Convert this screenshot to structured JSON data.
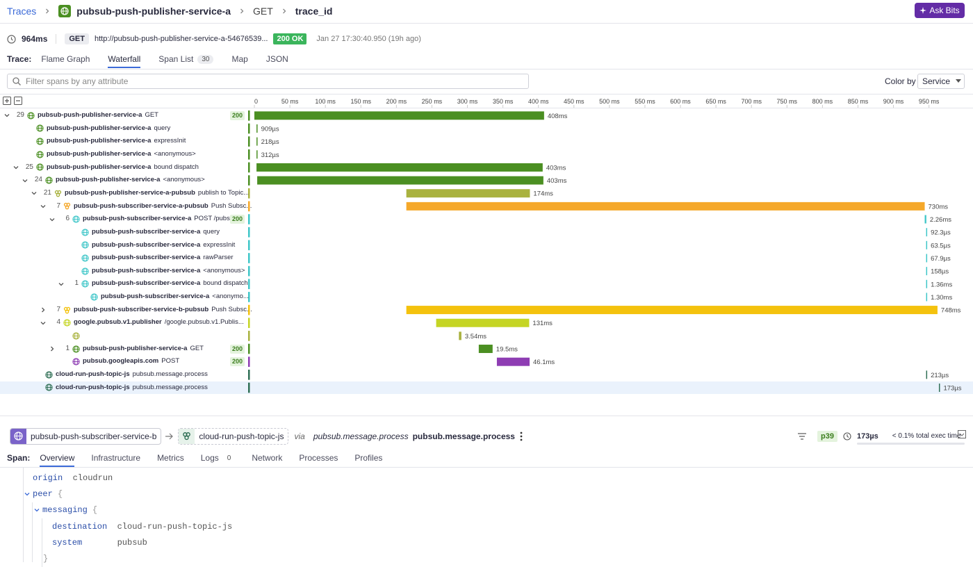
{
  "header": {
    "breadcrumb": [
      "Traces",
      "pubsub-push-publisher-service-a",
      "GET",
      "trace_id"
    ],
    "ask_button": "Ask Bits"
  },
  "summary": {
    "duration": "964ms",
    "method": "GET",
    "url": "http://pubsub-push-publisher-service-a-54676539...",
    "status": "200 OK",
    "timestamp": "Jan 27 17:30:40.950 (19h ago)"
  },
  "trace_tabs": {
    "label": "Trace:",
    "items": [
      "Flame Graph",
      "Waterfall",
      "Span List",
      "Map",
      "JSON"
    ],
    "active": 1,
    "span_list_count": 30
  },
  "filter": {
    "placeholder": "Filter spans by any attribute",
    "color_by_label": "Color by",
    "color_by_value": "Service"
  },
  "waterfall": {
    "xlim": [
      0,
      1012
    ],
    "ticks": [
      {
        "value": 0,
        "label": "0"
      },
      {
        "value": 50,
        "label": "50 ms"
      },
      {
        "value": 100,
        "label": "100 ms"
      },
      {
        "value": 150,
        "label": "150 ms"
      },
      {
        "value": 200,
        "label": "200 ms"
      },
      {
        "value": 250,
        "label": "250 ms"
      },
      {
        "value": 300,
        "label": "300 ms"
      },
      {
        "value": 350,
        "label": "350 ms"
      },
      {
        "value": 400,
        "label": "400 ms"
      },
      {
        "value": 450,
        "label": "450 ms"
      },
      {
        "value": 500,
        "label": "500 ms"
      },
      {
        "value": 550,
        "label": "550 ms"
      },
      {
        "value": 600,
        "label": "600 ms"
      },
      {
        "value": 650,
        "label": "650 ms"
      },
      {
        "value": 700,
        "label": "700 ms"
      },
      {
        "value": 750,
        "label": "750 ms"
      },
      {
        "value": 800,
        "label": "800 ms"
      },
      {
        "value": 850,
        "label": "850 ms"
      },
      {
        "value": 900,
        "label": "900 ms"
      },
      {
        "value": 950,
        "label": "950 ms"
      }
    ],
    "selected": 21,
    "spans": [
      {
        "count": 29,
        "expanded": true,
        "depth": 0,
        "service": "pubsub-push-publisher-service-a",
        "resource": "GET",
        "status": 200,
        "start_ms": 0,
        "duration_ms": 408,
        "duration_label": "408ms",
        "color": "#4b8f22",
        "icon": "globe"
      },
      {
        "count": null,
        "expanded": null,
        "depth": 1,
        "service": "pubsub-push-publisher-service-a",
        "resource": "query",
        "status": null,
        "start_ms": 3,
        "duration_ms": 0.909,
        "duration_label": "909µs",
        "color": "#4b8f22",
        "icon": "globe"
      },
      {
        "count": null,
        "expanded": null,
        "depth": 1,
        "service": "pubsub-push-publisher-service-a",
        "resource": "expressInit",
        "status": null,
        "start_ms": 3,
        "duration_ms": 0.218,
        "duration_label": "218µs",
        "color": "#4b8f22",
        "icon": "globe"
      },
      {
        "count": null,
        "expanded": null,
        "depth": 1,
        "service": "pubsub-push-publisher-service-a",
        "resource": "<anonymous>",
        "status": null,
        "start_ms": 3,
        "duration_ms": 0.312,
        "duration_label": "312µs",
        "color": "#4b8f22",
        "icon": "globe"
      },
      {
        "count": 25,
        "expanded": true,
        "depth": 1,
        "service": "pubsub-push-publisher-service-a",
        "resource": "bound dispatch",
        "status": null,
        "start_ms": 3,
        "duration_ms": 403,
        "duration_label": "403ms",
        "color": "#4b8f22",
        "icon": "globe"
      },
      {
        "count": 24,
        "expanded": true,
        "depth": 2,
        "service": "pubsub-push-publisher-service-a",
        "resource": "<anonymous>",
        "status": null,
        "start_ms": 4,
        "duration_ms": 403,
        "duration_label": "403ms",
        "color": "#4b8f22",
        "icon": "globe"
      },
      {
        "count": 21,
        "expanded": true,
        "depth": 3,
        "service": "pubsub-push-publisher-service-a-pubsub",
        "resource": "publish to Topic...",
        "status": null,
        "start_ms": 214,
        "duration_ms": 174,
        "duration_label": "174ms",
        "color": "#a9b23f",
        "icon": "queue"
      },
      {
        "count": 7,
        "expanded": true,
        "depth": 4,
        "service": "pubsub-push-subscriber-service-a-pubsub",
        "resource": "Push Subsc...",
        "status": null,
        "start_ms": 214,
        "duration_ms": 730,
        "duration_label": "730ms",
        "color": "#f5a82a",
        "icon": "queue"
      },
      {
        "count": 6,
        "expanded": true,
        "depth": 5,
        "service": "pubsub-push-subscriber-service-a",
        "resource": "POST /pubs...",
        "status": 200,
        "start_ms": 944,
        "duration_ms": 2.26,
        "duration_label": "2.26ms",
        "color": "#3ec6c8",
        "icon": "globe"
      },
      {
        "count": null,
        "expanded": null,
        "depth": 6,
        "service": "pubsub-push-subscriber-service-a",
        "resource": "query",
        "status": null,
        "start_ms": 946,
        "duration_ms": 0.0923,
        "duration_label": "92.3µs",
        "color": "#3ec6c8",
        "icon": "globe"
      },
      {
        "count": null,
        "expanded": null,
        "depth": 6,
        "service": "pubsub-push-subscriber-service-a",
        "resource": "expressInit",
        "status": null,
        "start_ms": 946,
        "duration_ms": 0.0635,
        "duration_label": "63.5µs",
        "color": "#3ec6c8",
        "icon": "globe"
      },
      {
        "count": null,
        "expanded": null,
        "depth": 6,
        "service": "pubsub-push-subscriber-service-a",
        "resource": "rawParser",
        "status": null,
        "start_ms": 946,
        "duration_ms": 0.0679,
        "duration_label": "67.9µs",
        "color": "#3ec6c8",
        "icon": "globe"
      },
      {
        "count": null,
        "expanded": null,
        "depth": 6,
        "service": "pubsub-push-subscriber-service-a",
        "resource": "<anonymous>",
        "status": null,
        "start_ms": 946,
        "duration_ms": 0.158,
        "duration_label": "158µs",
        "color": "#3ec6c8",
        "icon": "globe"
      },
      {
        "count": 1,
        "expanded": true,
        "depth": 6,
        "service": "pubsub-push-subscriber-service-a",
        "resource": "bound dispatch",
        "status": null,
        "start_ms": 946,
        "duration_ms": 1.36,
        "duration_label": "1.36ms",
        "color": "#3ec6c8",
        "icon": "globe"
      },
      {
        "count": null,
        "expanded": null,
        "depth": 7,
        "service": "pubsub-push-subscriber-service-a",
        "resource": "<anonymo...",
        "status": null,
        "start_ms": 946,
        "duration_ms": 1.3,
        "duration_label": "1.30ms",
        "color": "#3ec6c8",
        "icon": "globe"
      },
      {
        "count": 7,
        "expanded": false,
        "depth": 4,
        "service": "pubsub-push-subscriber-service-b-pubsub",
        "resource": "Push Subsc...",
        "status": null,
        "start_ms": 214,
        "duration_ms": 748,
        "duration_label": "748ms",
        "color": "#f4c20d",
        "icon": "queue"
      },
      {
        "count": 4,
        "expanded": true,
        "depth": 4,
        "service": "google.pubsub.v1.publisher",
        "resource": "/google.pubsub.v1.Publis...",
        "status": null,
        "start_ms": 256,
        "duration_ms": 131,
        "duration_label": "131ms",
        "color": "#c5d524",
        "icon": "globe"
      },
      {
        "count": null,
        "expanded": null,
        "depth": 5,
        "service": null,
        "resource": null,
        "status": null,
        "start_ms": 288,
        "duration_ms": 3.54,
        "duration_label": "3.54ms",
        "color": "#a9b23f",
        "icon": "globe"
      },
      {
        "count": 1,
        "expanded": false,
        "depth": 5,
        "service": "pubsub-push-publisher-service-a",
        "resource": "GET",
        "status": 200,
        "start_ms": 316,
        "duration_ms": 19.5,
        "duration_label": "19.5ms",
        "color": "#4b8f22",
        "icon": "globe"
      },
      {
        "count": null,
        "expanded": null,
        "depth": 5,
        "service": "pubsub.googleapis.com",
        "resource": "POST",
        "status": 200,
        "start_ms": 341.5,
        "duration_ms": 46.1,
        "duration_label": "46.1ms",
        "color": "#8e3db3",
        "icon": "globe"
      },
      {
        "count": null,
        "expanded": null,
        "depth": 2,
        "service": "cloud-run-push-topic-js",
        "resource": "pubsub.message.process",
        "status": null,
        "start_ms": 946,
        "duration_ms": 0.213,
        "duration_label": "213µs",
        "color": "#2f6f55",
        "icon": "globe"
      },
      {
        "count": null,
        "expanded": null,
        "depth": 2,
        "service": "cloud-run-push-topic-js",
        "resource": "pubsub.message.process",
        "status": null,
        "start_ms": 964,
        "duration_ms": 0.173,
        "duration_label": "173µs",
        "color": "#2f6f55",
        "icon": "globe"
      }
    ]
  },
  "span_panel": {
    "from_service": "pubsub-push-subscriber-service-b",
    "to_service": "cloud-run-push-topic-js",
    "via": "via",
    "operation": "pubsub.message.process",
    "resource": "pubsub.message.process",
    "percentile": "p39",
    "duration": "173µs",
    "exec_time": "< 0.1% total exec time",
    "tabs": {
      "label": "Span:",
      "items": [
        "Overview",
        "Infrastructure",
        "Metrics",
        "Logs",
        "Network",
        "Processes",
        "Profiles"
      ],
      "active": 0,
      "logs_count": 0
    },
    "attributes": [
      {
        "key": "origin",
        "value": "cloudrun"
      },
      {
        "key": "peer",
        "open": "{",
        "children": [
          {
            "key": "messaging",
            "open": "{",
            "close": "}",
            "children": [
              {
                "key": "destination",
                "value": "cloud-run-push-topic-js"
              },
              {
                "key": "system",
                "value": "pubsub"
              }
            ]
          }
        ]
      }
    ]
  }
}
